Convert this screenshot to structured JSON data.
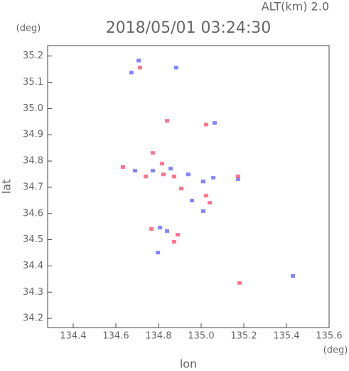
{
  "chart_data": {
    "type": "scatter",
    "title": "2018/05/01 03:24:30",
    "subtitle": "ALT(km) 2.0",
    "x_label": "lon",
    "y_label": "lat",
    "x_unit": "(deg)",
    "y_unit": "(deg)",
    "xlim": [
      134.28,
      135.6
    ],
    "ylim": [
      34.165,
      35.24
    ],
    "xticks": [
      134.4,
      134.6,
      134.8,
      {
        "value": 135.0,
        "label": "135.0"
      },
      135.2,
      135.4,
      135.6
    ],
    "yticks": [
      34.2,
      34.3,
      34.4,
      34.5,
      34.6,
      34.7,
      34.8,
      34.9,
      {
        "value": 35.0,
        "label": "35.0"
      },
      35.1,
      35.2
    ],
    "series": [
      {
        "color": "#6f6fff",
        "x": [
          134.707,
          134.673,
          134.883,
          135.063,
          134.69,
          134.773,
          134.94,
          135.01,
          134.957,
          135.01,
          135.173,
          134.84,
          134.807,
          134.797,
          135.43,
          134.857,
          135.057
        ],
        "values": [
          35.183,
          35.137,
          35.156,
          34.945,
          34.763,
          34.763,
          34.749,
          34.722,
          34.649,
          34.609,
          34.731,
          34.533,
          34.546,
          34.451,
          34.362,
          34.771,
          34.736
        ]
      },
      {
        "color": "#ff5a7a",
        "x": [
          134.713,
          134.84,
          135.023,
          134.773,
          134.633,
          134.823,
          134.873,
          134.907,
          135.023,
          135.04,
          135.173,
          134.767,
          134.89,
          134.873,
          135.18,
          134.817,
          134.74
        ],
        "values": [
          35.156,
          34.953,
          34.939,
          34.831,
          34.777,
          34.749,
          34.741,
          34.695,
          34.668,
          34.641,
          34.741,
          34.541,
          34.519,
          34.492,
          34.335,
          34.79,
          34.741
        ]
      }
    ]
  }
}
